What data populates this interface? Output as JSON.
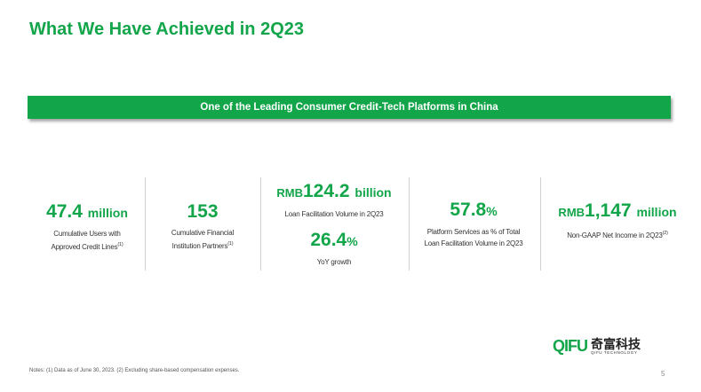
{
  "header": {
    "title": "What We Have Achieved in 2Q23"
  },
  "banner": "One of the Leading Consumer Credit-Tech Platforms in China",
  "metrics": [
    {
      "value": "47.4",
      "unit": "million",
      "label": [
        "Cumulative Users with",
        "Approved Credit Lines"
      ],
      "note": "(1)"
    },
    {
      "value": "153",
      "label": [
        "Cumulative Financial",
        "Institution Partners"
      ],
      "note": "(1)"
    },
    {
      "prefix": "RMB",
      "value": "124.2",
      "unit": "billion",
      "label": [
        "Loan Facilitation Volume in 2Q23"
      ],
      "sub": {
        "value": "26.4",
        "unit": "%",
        "label": [
          "YoY growth"
        ]
      }
    },
    {
      "value": "57.8",
      "unit": "%",
      "label": [
        "Platform Services as % of Total",
        "Loan Facilitation Volume in 2Q23"
      ]
    },
    {
      "prefix": "RMB",
      "value": "1,147",
      "unit": "million",
      "label": [
        "Non-GAAP Net Income in 2Q23"
      ],
      "note": "(2)"
    }
  ],
  "footer": {
    "notes": "Notes: (1) Data as of June 30, 2023. (2) Excluding share-based compensation expenses.",
    "page": "5",
    "logo": {
      "mark": "QIFU",
      "name": "奇富科技",
      "tagline": "QIFU TECHNOLOGY"
    }
  }
}
